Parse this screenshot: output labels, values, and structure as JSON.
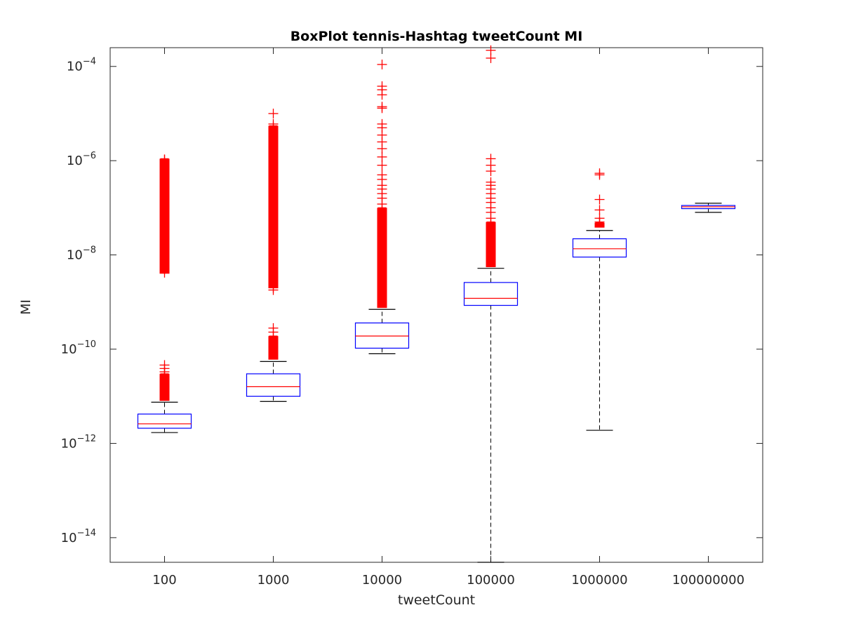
{
  "chart_data": {
    "type": "box",
    "title": "BoxPlot tennis-Hashtag tweetCount MI",
    "xlabel": "tweetCount",
    "ylabel": "MI",
    "yscale": "log",
    "ylim": [
      3e-15,
      0.00025
    ],
    "yticks": [
      {
        "value": 1e-14,
        "base": "10",
        "exp": "−14"
      },
      {
        "value": 1e-12,
        "base": "10",
        "exp": "−12"
      },
      {
        "value": 1e-10,
        "base": "10",
        "exp": "−10"
      },
      {
        "value": 1e-08,
        "base": "10",
        "exp": "−8"
      },
      {
        "value": 1e-06,
        "base": "10",
        "exp": "−6"
      },
      {
        "value": 0.0001,
        "base": "10",
        "exp": "−4"
      }
    ],
    "categories": [
      "100",
      "1000",
      "10000",
      "100000",
      "1000000",
      "100000000"
    ],
    "boxes": [
      {
        "category": "100",
        "whisker_low": 1.7e-12,
        "q1": 2.1e-12,
        "median": 2.6e-12,
        "q3": 4.2e-12,
        "whisker_high": 7.5e-12,
        "outlier_bands": [
          [
            8e-12,
            3e-11
          ],
          [
            4e-09,
            1.1e-06
          ]
        ],
        "outliers": [
          3.3e-11,
          3.9e-11,
          4.6e-11,
          4.2e-09,
          5e-09,
          6.5e-09,
          1.2e-08,
          1.5e-08,
          3e-08,
          6e-08,
          1e-07,
          2e-07,
          4e-07,
          6e-07,
          8e-07,
          1.05e-06
        ]
      },
      {
        "category": "1000",
        "whisker_low": 7.8e-12,
        "q1": 1e-11,
        "median": 1.6e-11,
        "q3": 3e-11,
        "whisker_high": 5.5e-11,
        "outlier_bands": [
          [
            6e-11,
            1.9e-10
          ],
          [
            2e-09,
            5.5e-06
          ]
        ],
        "outliers": [
          2.3e-10,
          2.8e-10,
          1.8e-09,
          2e-09,
          5e-09,
          1e-08,
          3e-08,
          8e-08,
          2e-07,
          5e-07,
          1e-06,
          2e-06,
          4e-06,
          6e-06,
          1e-05
        ]
      },
      {
        "category": "10000",
        "whisker_low": 8e-11,
        "q1": 1.05e-10,
        "median": 1.9e-10,
        "q3": 3.6e-10,
        "whisker_high": 7e-10,
        "outlier_bands": [
          [
            7.5e-10,
            1e-07
          ]
        ],
        "outliers": [
          1.2e-07,
          1.6e-07,
          2e-07,
          2.5e-07,
          3e-07,
          4e-07,
          5e-07,
          8e-07,
          1.2e-06,
          1.8e-06,
          2.5e-06,
          3.5e-06,
          5e-06,
          6e-06,
          1.3e-05,
          1.4e-05,
          2.5e-05,
          3.2e-05,
          3.8e-05,
          0.00011
        ]
      },
      {
        "category": "100000",
        "whisker_low": 3e-15,
        "q1": 8.5e-10,
        "median": 1.2e-09,
        "q3": 2.6e-09,
        "whisker_high": 5.2e-09,
        "outlier_bands": [
          [
            5.5e-09,
            5e-08
          ]
        ],
        "outliers": [
          6e-08,
          8e-08,
          1e-07,
          1.3e-07,
          1.6e-07,
          2e-07,
          2.5e-07,
          3e-07,
          3.5e-07,
          6e-07,
          8e-07,
          1.1e-06,
          0.00015,
          0.00022
        ]
      },
      {
        "category": "1000000",
        "whisker_low": 1.9e-12,
        "q1": 9e-09,
        "median": 1.35e-08,
        "q3": 2.2e-08,
        "whisker_high": 3.3e-08,
        "outlier_bands": [
          [
            3.8e-08,
            4.8e-08
          ]
        ],
        "outliers": [
          5e-08,
          6e-08,
          9e-08,
          1.5e-07,
          5e-07,
          5.4e-07
        ]
      },
      {
        "category": "100000000",
        "whisker_low": 8e-08,
        "q1": 9.6e-08,
        "median": 1.05e-07,
        "q3": 1.12e-07,
        "whisker_high": 1.25e-07,
        "outlier_bands": [],
        "outliers": []
      }
    ],
    "colors": {
      "box": "#0000ff",
      "median": "#ff0000",
      "outlier": "#ff0000",
      "whisker": "#000000",
      "axis": "#262626"
    },
    "grid": false,
    "legend": "none"
  }
}
